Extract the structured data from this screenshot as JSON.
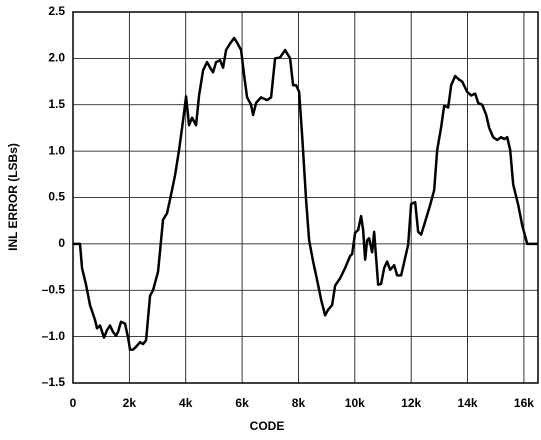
{
  "chart_data": {
    "type": "line",
    "x_label": "CODE",
    "y_label": "INL ERROR (LSBs)",
    "xlim": [
      0,
      16500
    ],
    "ylim": [
      -1.5,
      2.5
    ],
    "xticks": [
      0,
      {
        "value": 2000,
        "label": "2k"
      },
      {
        "value": 4000,
        "label": "4k"
      },
      {
        "value": 6000,
        "label": "6k"
      },
      {
        "value": 8000,
        "label": "8k"
      },
      {
        "value": 10000,
        "label": "10k"
      },
      {
        "value": 12000,
        "label": "12k"
      },
      {
        "value": 14000,
        "label": "14k"
      },
      {
        "value": 16000,
        "label": "16k"
      }
    ],
    "yticks": [
      {
        "value": -1.5,
        "label": "–1.5"
      },
      {
        "value": -1,
        "label": "–1.0"
      },
      {
        "value": -0.5,
        "label": "–0.5"
      },
      0,
      0.5,
      {
        "value": 1,
        "label": "1.0"
      },
      1.5,
      {
        "value": 2,
        "label": "2.0"
      },
      2.5
    ],
    "grid": true,
    "color": "#000000",
    "x": [
      0,
      249,
      320,
      462,
      604,
      781,
      852,
      959,
      1101,
      1207,
      1314,
      1420,
      1527,
      1598,
      1704,
      1846,
      1953,
      2024,
      2130,
      2237,
      2379,
      2485,
      2592,
      2734,
      2840,
      3018,
      3195,
      3337,
      3479,
      3621,
      3763,
      3905,
      4012,
      4118,
      4225,
      4367,
      4473,
      4615,
      4757,
      4864,
      4970,
      5077,
      5219,
      5325,
      5432,
      5574,
      5716,
      5822,
      5964,
      6071,
      6177,
      6319,
      6390,
      6497,
      6674,
      6887,
      7029,
      7171,
      7349,
      7526,
      7704,
      7810,
      7917,
      8023,
      8130,
      8272,
      8378,
      8520,
      8662,
      8804,
      8946,
      9053,
      9195,
      9301,
      9479,
      9656,
      9834,
      9905,
      10011,
      10118,
      10224,
      10295,
      10366,
      10437,
      10508,
      10615,
      10686,
      10828,
      10934,
      11041,
      11147,
      11254,
      11396,
      11502,
      11644,
      11786,
      11893,
      11999,
      12141,
      12248,
      12354,
      12496,
      12674,
      12816,
      12922,
      13064,
      13171,
      13313,
      13419,
      13561,
      13703,
      13810,
      13987,
      14129,
      14271,
      14378,
      14520,
      14662,
      14768,
      14910,
      15052,
      15194,
      15301,
      15407,
      15514,
      15620,
      15798,
      15940,
      16117,
      16500
    ],
    "values": [
      0,
      0,
      -0.26,
      -0.44,
      -0.66,
      -0.82,
      -0.91,
      -0.88,
      -1.01,
      -0.93,
      -0.88,
      -0.95,
      -0.99,
      -0.95,
      -0.84,
      -0.86,
      -1.01,
      -1.14,
      -1.14,
      -1.11,
      -1.06,
      -1.08,
      -1.04,
      -0.56,
      -0.5,
      -0.3,
      0.26,
      0.33,
      0.53,
      0.74,
      1.01,
      1.33,
      1.59,
      1.28,
      1.36,
      1.28,
      1.6,
      1.87,
      1.96,
      1.9,
      1.85,
      1.96,
      1.98,
      1.9,
      2.09,
      2.16,
      2.22,
      2.17,
      2.09,
      1.82,
      1.58,
      1.5,
      1.39,
      1.52,
      1.58,
      1.55,
      1.58,
      2.0,
      2.01,
      2.09,
      2.0,
      1.71,
      1.71,
      1.64,
      1.17,
      0.47,
      0.04,
      -0.19,
      -0.39,
      -0.6,
      -0.77,
      -0.71,
      -0.66,
      -0.45,
      -0.37,
      -0.26,
      -0.13,
      -0.11,
      0.12,
      0.15,
      0.3,
      0.15,
      -0.17,
      0.04,
      0.06,
      -0.09,
      0.13,
      -0.44,
      -0.43,
      -0.26,
      -0.19,
      -0.28,
      -0.23,
      -0.34,
      -0.34,
      -0.15,
      -0.01,
      0.43,
      0.45,
      0.13,
      0.1,
      0.24,
      0.42,
      0.58,
      1.01,
      1.26,
      1.49,
      1.47,
      1.71,
      1.81,
      1.77,
      1.75,
      1.64,
      1.6,
      1.62,
      1.52,
      1.5,
      1.39,
      1.25,
      1.15,
      1.12,
      1.15,
      1.13,
      1.15,
      1.01,
      0.64,
      0.42,
      0.2,
      0,
      0
    ]
  }
}
